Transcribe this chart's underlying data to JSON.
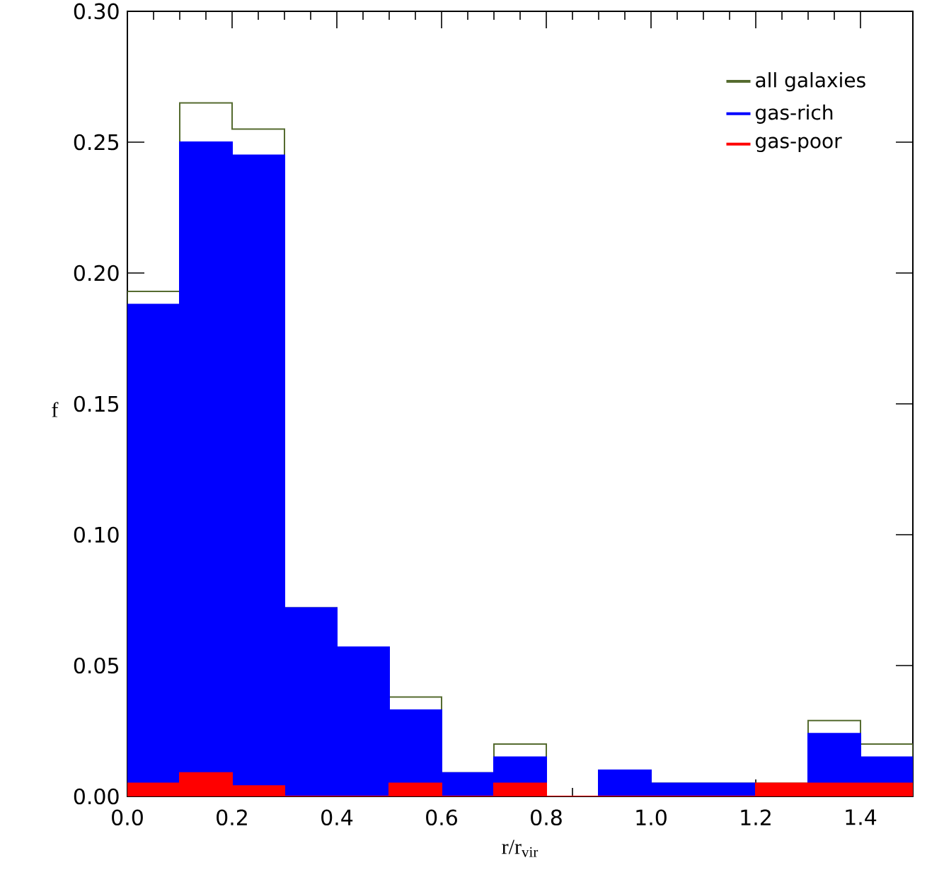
{
  "chart_data": {
    "type": "histogram",
    "xlabel": "r/r$_{vir}$",
    "ylabel": "f",
    "bins": [
      0,
      0.1,
      0.2,
      0.3,
      0.4,
      0.5,
      0.6,
      0.7,
      0.8,
      0.9,
      1.0,
      1.1,
      1.2,
      1.3,
      1.4,
      1.5
    ],
    "series": [
      {
        "name": "all galaxies",
        "color": "#556b2f",
        "values": [
          0.193,
          0.265,
          0.255,
          0.072,
          0.057,
          0.038,
          0.009,
          0.02,
          0,
          0.01,
          0.005,
          0.005,
          0.005,
          0.029,
          0.02
        ]
      },
      {
        "name": "gas-rich",
        "color": "#0000ff",
        "values": [
          0.188,
          0.25,
          0.245,
          0.072,
          0.057,
          0.033,
          0.009,
          0.015,
          0,
          0.01,
          0.005,
          0.005,
          0,
          0.024,
          0.015
        ]
      },
      {
        "name": "gas-poor",
        "color": "#ff0000",
        "values": [
          0.005,
          0.009,
          0.004,
          0,
          0,
          0.005,
          0,
          0.005,
          0,
          0,
          0,
          0,
          0.005,
          0.005,
          0.005
        ]
      }
    ],
    "xlim": [
      0,
      1.5
    ],
    "ylim": [
      0,
      0.3
    ],
    "xticks": [
      {
        "value": 0,
        "label": "0.0"
      },
      {
        "value": 0.2,
        "label": "0.2"
      },
      {
        "value": 0.4,
        "label": "0.4"
      },
      {
        "value": 0.6,
        "label": "0.6"
      },
      {
        "value": 0.8,
        "label": "0.8"
      },
      {
        "value": 1.0,
        "label": "1.0"
      },
      {
        "value": 1.2,
        "label": "1.2"
      },
      {
        "value": 1.4,
        "label": "1.4"
      }
    ],
    "yticks": [
      {
        "value": 0,
        "label": "0.00"
      },
      {
        "value": 0.05,
        "label": "0.05"
      },
      {
        "value": 0.1,
        "label": "0.10"
      },
      {
        "value": 0.15,
        "label": "0.15"
      },
      {
        "value": 0.2,
        "label": "0.20"
      },
      {
        "value": 0.25,
        "label": "0.25"
      },
      {
        "value": 0.3,
        "label": "0.30"
      }
    ],
    "legend": "top right"
  }
}
